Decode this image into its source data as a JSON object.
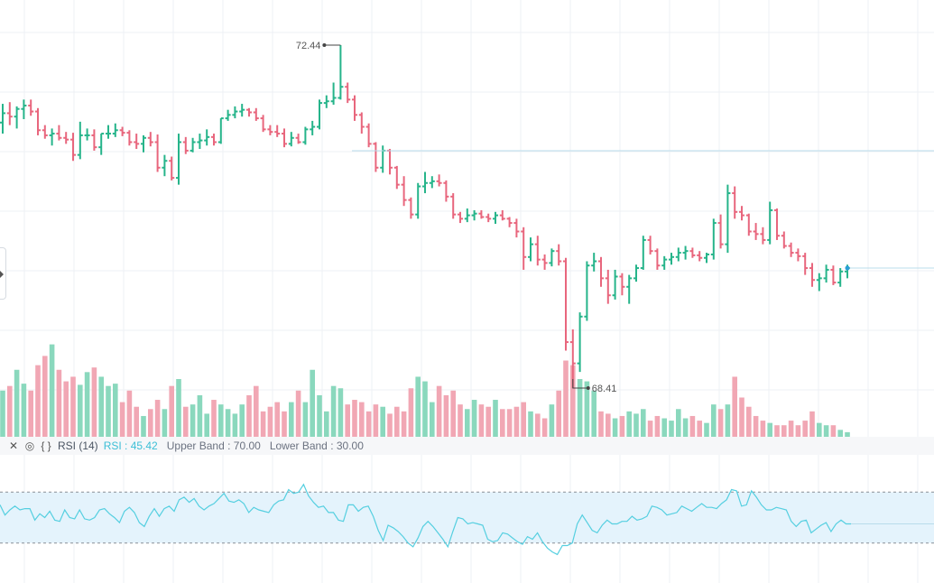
{
  "chart_data": [
    {
      "type": "ohlc",
      "annotations": {
        "high_label": "72.44",
        "low_label": "68.41"
      },
      "series": [
        {
          "name": "price",
          "ohlc": [
            [
              71.53,
              71.75,
              71.4,
              71.64
            ],
            [
              71.64,
              71.77,
              71.5,
              71.6
            ],
            [
              71.6,
              71.72,
              71.46,
              71.69
            ],
            [
              71.69,
              71.8,
              71.57,
              71.73
            ],
            [
              71.73,
              71.8,
              71.61,
              71.66
            ],
            [
              71.66,
              71.7,
              71.38,
              71.44
            ],
            [
              71.44,
              71.5,
              71.34,
              71.38
            ],
            [
              71.38,
              71.46,
              71.26,
              71.4
            ],
            [
              71.4,
              71.5,
              71.32,
              71.35
            ],
            [
              71.35,
              71.42,
              71.28,
              71.33
            ],
            [
              71.33,
              71.41,
              71.08,
              71.15
            ],
            [
              71.15,
              71.54,
              71.1,
              71.38
            ],
            [
              71.38,
              71.46,
              71.32,
              71.38
            ],
            [
              71.38,
              71.45,
              71.2,
              71.24
            ],
            [
              71.24,
              71.4,
              71.15,
              71.4
            ],
            [
              71.4,
              71.5,
              71.34,
              71.4
            ],
            [
              71.4,
              71.52,
              71.36,
              71.44
            ],
            [
              71.44,
              71.48,
              71.37,
              71.41
            ],
            [
              71.41,
              71.44,
              71.26,
              71.3
            ],
            [
              71.3,
              71.4,
              71.22,
              71.28
            ],
            [
              71.28,
              71.38,
              71.18,
              71.35
            ],
            [
              71.35,
              71.42,
              71.25,
              71.3
            ],
            [
              71.3,
              71.39,
              70.95,
              71.0
            ],
            [
              71.0,
              71.15,
              70.9,
              71.08
            ],
            [
              71.08,
              71.13,
              70.85,
              70.88
            ],
            [
              70.88,
              71.4,
              70.8,
              71.3
            ],
            [
              71.3,
              71.36,
              71.16,
              71.2
            ],
            [
              71.2,
              71.35,
              71.18,
              71.3
            ],
            [
              71.3,
              71.4,
              71.22,
              71.32
            ],
            [
              71.32,
              71.45,
              71.26,
              71.36
            ],
            [
              71.36,
              71.4,
              71.26,
              71.3
            ],
            [
              71.3,
              71.58,
              71.28,
              71.58
            ],
            [
              71.58,
              71.68,
              71.55,
              71.62
            ],
            [
              71.62,
              71.72,
              71.58,
              71.66
            ],
            [
              71.66,
              71.75,
              71.6,
              71.68
            ],
            [
              71.68,
              71.7,
              71.6,
              71.65
            ],
            [
              71.65,
              71.7,
              71.55,
              71.58
            ],
            [
              71.58,
              71.62,
              71.42,
              71.45
            ],
            [
              71.45,
              71.5,
              71.38,
              71.42
            ],
            [
              71.42,
              71.5,
              71.36,
              71.4
            ],
            [
              71.4,
              71.46,
              71.24,
              71.28
            ],
            [
              71.28,
              71.42,
              71.25,
              71.35
            ],
            [
              71.35,
              71.4,
              71.28,
              71.3
            ],
            [
              71.3,
              71.48,
              71.27,
              71.45
            ],
            [
              71.45,
              71.55,
              71.38,
              71.48
            ],
            [
              71.48,
              71.8,
              71.45,
              71.76
            ],
            [
              71.76,
              71.85,
              71.7,
              71.78
            ],
            [
              71.78,
              72.0,
              71.74,
              71.82
            ],
            [
              71.82,
              72.44,
              71.8,
              71.95
            ],
            [
              71.95,
              72.0,
              71.76,
              71.8
            ],
            [
              71.8,
              71.85,
              71.55,
              71.62
            ],
            [
              71.62,
              71.65,
              71.4,
              71.48
            ],
            [
              71.48,
              71.52,
              71.24,
              71.28
            ],
            [
              71.28,
              71.3,
              70.95,
              71.0
            ],
            [
              71.0,
              71.26,
              70.94,
              71.2
            ],
            [
              71.2,
              71.22,
              70.92,
              71.0
            ],
            [
              71.0,
              71.02,
              70.75,
              70.8
            ],
            [
              70.8,
              70.9,
              70.55,
              70.62
            ],
            [
              70.62,
              70.65,
              70.4,
              70.45
            ],
            [
              70.45,
              70.82,
              70.4,
              70.78
            ],
            [
              70.78,
              70.95,
              70.7,
              70.82
            ],
            [
              70.82,
              70.9,
              70.76,
              70.84
            ],
            [
              70.84,
              70.92,
              70.78,
              70.82
            ],
            [
              70.82,
              70.85,
              70.6,
              70.66
            ],
            [
              70.66,
              70.7,
              70.4,
              70.45
            ],
            [
              70.45,
              70.48,
              70.35,
              70.4
            ],
            [
              70.4,
              70.52,
              70.36,
              70.44
            ],
            [
              70.44,
              70.5,
              70.38,
              70.46
            ],
            [
              70.46,
              70.5,
              70.4,
              70.42
            ],
            [
              70.42,
              70.46,
              70.36,
              70.4
            ],
            [
              70.4,
              70.48,
              70.34,
              70.44
            ],
            [
              70.44,
              70.5,
              70.38,
              70.4
            ],
            [
              70.4,
              70.42,
              70.3,
              70.35
            ],
            [
              70.35,
              70.4,
              70.18,
              70.25
            ],
            [
              70.25,
              70.3,
              69.8,
              69.95
            ],
            [
              69.95,
              70.18,
              69.9,
              70.1
            ],
            [
              70.1,
              70.2,
              69.85,
              69.92
            ],
            [
              69.92,
              69.98,
              69.8,
              69.88
            ],
            [
              69.88,
              70.05,
              69.84,
              70.02
            ],
            [
              70.02,
              70.1,
              69.85,
              69.9
            ],
            [
              69.9,
              69.94,
              68.85,
              68.95
            ],
            [
              68.95,
              69.1,
              68.41,
              68.7
            ],
            [
              68.7,
              69.3,
              68.6,
              69.25
            ],
            [
              69.25,
              69.9,
              69.2,
              69.85
            ],
            [
              69.85,
              70.0,
              69.78,
              69.9
            ],
            [
              69.9,
              69.95,
              69.6,
              69.7
            ],
            [
              69.7,
              69.8,
              69.4,
              69.5
            ],
            [
              69.5,
              69.8,
              69.45,
              69.72
            ],
            [
              69.72,
              69.76,
              69.5,
              69.6
            ],
            [
              69.6,
              69.74,
              69.4,
              69.7
            ],
            [
              69.7,
              69.86,
              69.66,
              69.82
            ],
            [
              69.82,
              70.2,
              69.8,
              70.15
            ],
            [
              70.15,
              70.2,
              69.98,
              70.02
            ],
            [
              70.02,
              70.05,
              69.8,
              69.85
            ],
            [
              69.85,
              69.96,
              69.8,
              69.92
            ],
            [
              69.92,
              70.0,
              69.86,
              69.95
            ],
            [
              69.95,
              70.06,
              69.9,
              70.0
            ],
            [
              70.0,
              70.08,
              69.92,
              70.02
            ],
            [
              70.02,
              70.06,
              69.94,
              69.97
            ],
            [
              69.97,
              70.02,
              69.9,
              69.94
            ],
            [
              69.94,
              70.0,
              69.88,
              69.98
            ],
            [
              69.98,
              70.4,
              69.92,
              70.35
            ],
            [
              70.35,
              70.45,
              70.05,
              70.1
            ],
            [
              70.1,
              70.8,
              70.0,
              70.7
            ],
            [
              70.7,
              70.78,
              70.4,
              70.48
            ],
            [
              70.48,
              70.55,
              70.38,
              70.44
            ],
            [
              70.44,
              70.46,
              70.2,
              70.25
            ],
            [
              70.25,
              70.35,
              70.15,
              70.22
            ],
            [
              70.22,
              70.3,
              70.1,
              70.15
            ],
            [
              70.15,
              70.6,
              70.1,
              70.5
            ],
            [
              70.5,
              70.52,
              70.15,
              70.2
            ],
            [
              70.2,
              70.25,
              70.05,
              70.08
            ],
            [
              70.08,
              70.12,
              69.95,
              70.0
            ],
            [
              70.0,
              70.05,
              69.9,
              69.96
            ],
            [
              69.96,
              70.0,
              69.74,
              69.82
            ],
            [
              69.82,
              69.88,
              69.6,
              69.68
            ],
            [
              69.68,
              69.76,
              69.55,
              69.7
            ],
            [
              69.7,
              69.86,
              69.65,
              69.8
            ],
            [
              69.8,
              69.85,
              69.62,
              69.65
            ],
            [
              69.65,
              69.82,
              69.6,
              69.78
            ],
            [
              69.78,
              69.86,
              69.7,
              69.82
            ]
          ],
          "volume": [
            40,
            44,
            58,
            46,
            40,
            62,
            70,
            80,
            58,
            48,
            52,
            45,
            56,
            60,
            52,
            44,
            46,
            30,
            40,
            26,
            18,
            24,
            32,
            24,
            44,
            50,
            26,
            28,
            36,
            20,
            32,
            28,
            24,
            20,
            28,
            36,
            44,
            22,
            26,
            30,
            22,
            30,
            40,
            30,
            58,
            36,
            22,
            44,
            42,
            28,
            32,
            30,
            22,
            28,
            26,
            20,
            26,
            22,
            42,
            52,
            48,
            30,
            44,
            36,
            40,
            28,
            24,
            32,
            28,
            26,
            32,
            24,
            24,
            26,
            30,
            22,
            20,
            16,
            28,
            40,
            66,
            62,
            50,
            48,
            40,
            22,
            20,
            16,
            18,
            22,
            20,
            24,
            14,
            18,
            16,
            14,
            24,
            16,
            18,
            14,
            12,
            28,
            24,
            28,
            52,
            34,
            26,
            18,
            14,
            12,
            10,
            10,
            14,
            10,
            14,
            22,
            12,
            10,
            10,
            6,
            4
          ]
        }
      ]
    },
    {
      "type": "line",
      "series": [
        {
          "name": "RSI",
          "values": [
            60,
            52,
            56,
            59,
            56,
            57,
            57,
            48,
            53,
            50,
            55,
            48,
            47,
            56,
            50,
            49,
            56,
            49,
            48,
            50,
            56,
            57,
            53,
            50,
            46,
            55,
            58,
            54,
            46,
            43,
            51,
            57,
            51,
            57,
            59,
            55,
            64,
            66,
            62,
            65,
            59,
            56,
            59,
            61,
            65,
            69,
            63,
            62,
            64,
            61,
            54,
            58,
            56,
            55,
            54,
            60,
            63,
            64,
            72,
            69,
            70,
            76,
            67,
            62,
            58,
            59,
            54,
            54,
            48,
            47,
            60,
            60,
            55,
            58,
            59,
            51,
            40,
            32,
            44,
            42,
            39,
            35,
            30,
            27,
            34,
            43,
            47,
            43,
            38,
            33,
            27,
            39,
            50,
            49,
            45,
            46,
            45,
            44,
            33,
            31,
            32,
            38,
            37,
            34,
            31,
            29,
            35,
            33,
            38,
            31,
            26,
            23,
            21,
            28,
            28,
            30,
            45,
            52,
            46,
            40,
            38,
            44,
            48,
            45,
            45,
            47,
            47,
            51,
            48,
            49,
            51,
            59,
            58,
            56,
            52,
            53,
            54,
            59,
            57,
            55,
            58,
            61,
            58,
            58,
            57,
            61,
            64,
            72,
            71,
            59,
            60,
            71,
            66,
            60,
            56,
            56,
            58,
            57,
            56,
            47,
            43,
            47,
            48,
            38,
            41,
            44,
            46,
            39,
            45,
            48,
            45,
            45
          ]
        }
      ],
      "indicator": {
        "name": "RSI (14)",
        "value_label": "RSI : 45.42",
        "upper_label": "Upper Band : 70.00",
        "lower_label": "Lower Band : 30.00",
        "upper": 70,
        "lower": 30
      },
      "ylim": [
        0,
        100
      ]
    }
  ],
  "colors": {
    "up": "#26b48a",
    "down": "#e8667d",
    "vol_up": "#8ad8bd",
    "vol_down": "#f1a7b4",
    "rsi_line": "#55cfe0",
    "rsi_band": "#e4f3fc",
    "grid": "#eef1f4",
    "ref_line": "#b9dceb"
  },
  "toolbar": {
    "close_icon": "close-icon",
    "visibility_icon": "eye-icon",
    "settings_icon": "braces-icon"
  }
}
